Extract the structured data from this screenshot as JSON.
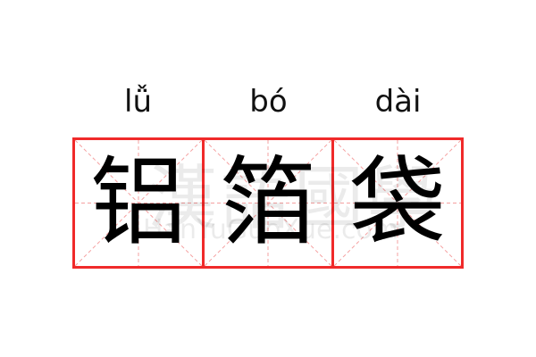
{
  "word": [
    {
      "pinyin": "lǚ",
      "char": "铝"
    },
    {
      "pinyin": "bó",
      "char": "箔"
    },
    {
      "pinyin": "dài",
      "char": "袋"
    }
  ],
  "watermark": {
    "chinese": "漢語國學",
    "url": "HanYuGuoXue.com"
  },
  "colors": {
    "grid_border": "#f02a2a",
    "guide_lines": "#f5a0a0",
    "text": "#000000"
  }
}
